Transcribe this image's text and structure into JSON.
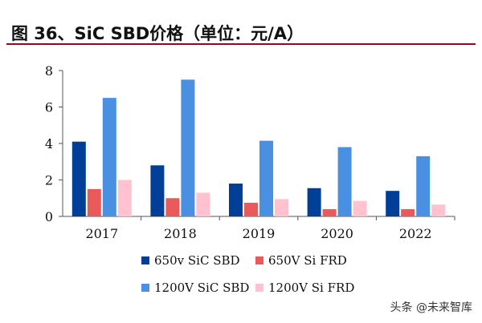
{
  "title": "图 36、SiC SBD价格（单位：元/A）",
  "watermark": "头条 @未来智库",
  "chart_data": {
    "type": "bar",
    "categories": [
      "2017",
      "2018",
      "2019",
      "2020",
      "2022"
    ],
    "series": [
      {
        "name": "650v SiC SBD",
        "color": "#003f97",
        "values": [
          4.1,
          2.8,
          1.8,
          1.55,
          1.4
        ]
      },
      {
        "name": "650V Si FRD",
        "color": "#ea5a5a",
        "values": [
          1.5,
          1.0,
          0.75,
          0.4,
          0.4
        ]
      },
      {
        "name": "1200V SiC SBD",
        "color": "#4a90e2",
        "values": [
          6.5,
          7.5,
          4.15,
          3.8,
          3.3
        ]
      },
      {
        "name": "1200V Si FRD",
        "color": "#ffc2ce",
        "values": [
          2.0,
          1.3,
          0.95,
          0.85,
          0.65
        ]
      }
    ],
    "ylim": [
      0,
      8
    ],
    "yticks": [
      0,
      2,
      4,
      6,
      8
    ],
    "legend_position": "bottom",
    "grid": false
  }
}
